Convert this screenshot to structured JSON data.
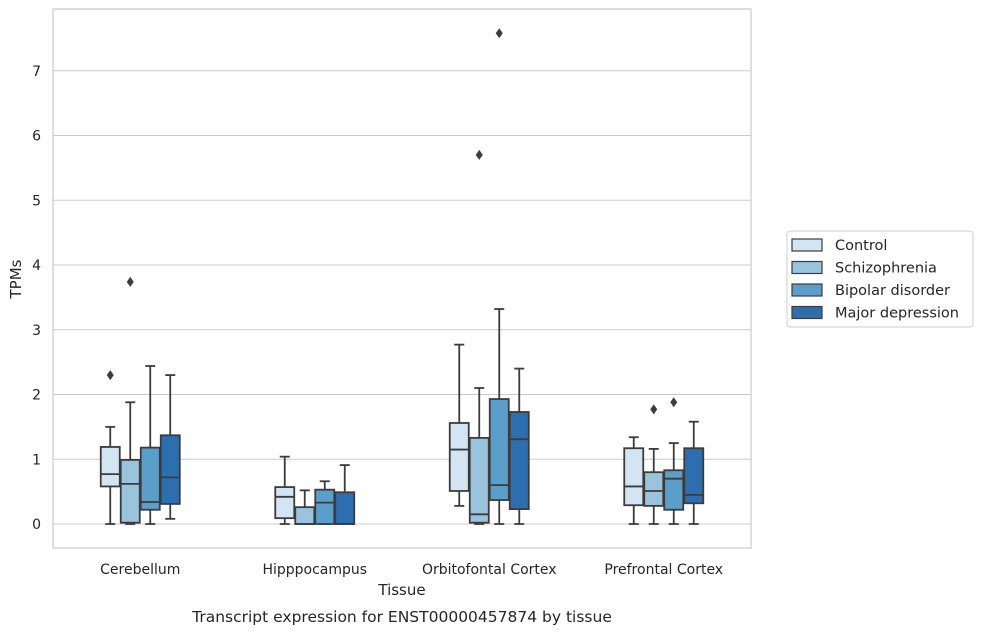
{
  "chart_data": {
    "type": "box",
    "xlabel": "Tissue",
    "ylabel": "TPMs",
    "caption": "Transcript expression for ENST00000457874 by tissue",
    "categories": [
      "Cerebellum",
      "Hipppocampus",
      "Orbitofontal Cortex",
      "Prefrontal Cortex"
    ],
    "ylim": [
      -0.37,
      7.95
    ],
    "yticks": [
      0,
      1,
      2,
      3,
      4,
      5,
      6,
      7
    ],
    "grid": "horizontal",
    "legend_position": "right",
    "series": [
      {
        "name": "Control",
        "color": "#d3e4f3",
        "boxes": [
          {
            "whislo": 0.0,
            "q1": 0.58,
            "med": 0.77,
            "q3": 1.19,
            "whishi": 1.5,
            "fliers": [
              2.3
            ]
          },
          {
            "whislo": 0.0,
            "q1": 0.09,
            "med": 0.42,
            "q3": 0.57,
            "whishi": 1.04,
            "fliers": []
          },
          {
            "whislo": 0.28,
            "q1": 0.51,
            "med": 1.15,
            "q3": 1.56,
            "whishi": 2.77,
            "fliers": []
          },
          {
            "whislo": 0.0,
            "q1": 0.29,
            "med": 0.58,
            "q3": 1.17,
            "whishi": 1.34,
            "fliers": []
          }
        ]
      },
      {
        "name": "Schizophrenia",
        "color": "#9ac3de",
        "boxes": [
          {
            "whislo": 0.0,
            "q1": 0.02,
            "med": 0.62,
            "q3": 0.99,
            "whishi": 1.88,
            "fliers": [
              3.74
            ]
          },
          {
            "whislo": 0.0,
            "q1": 0.0,
            "med": 0.0,
            "q3": 0.26,
            "whishi": 0.52,
            "fliers": []
          },
          {
            "whislo": 0.0,
            "q1": 0.02,
            "med": 0.15,
            "q3": 1.33,
            "whishi": 2.1,
            "fliers": [
              5.7
            ]
          },
          {
            "whislo": 0.0,
            "q1": 0.28,
            "med": 0.51,
            "q3": 0.8,
            "whishi": 1.16,
            "fliers": [
              1.77
            ]
          }
        ]
      },
      {
        "name": "Bipolar disorder",
        "color": "#5a9ec9",
        "boxes": [
          {
            "whislo": 0.0,
            "q1": 0.22,
            "med": 0.34,
            "q3": 1.18,
            "whishi": 2.44,
            "fliers": []
          },
          {
            "whislo": 0.0,
            "q1": 0.0,
            "med": 0.33,
            "q3": 0.53,
            "whishi": 0.66,
            "fliers": []
          },
          {
            "whislo": 0.0,
            "q1": 0.37,
            "med": 0.6,
            "q3": 1.93,
            "whishi": 3.32,
            "fliers": [
              7.58
            ]
          },
          {
            "whislo": 0.0,
            "q1": 0.22,
            "med": 0.7,
            "q3": 0.83,
            "whishi": 1.25,
            "fliers": [
              1.88
            ]
          }
        ]
      },
      {
        "name": "Major depression",
        "color": "#2c6eae",
        "boxes": [
          {
            "whislo": 0.08,
            "q1": 0.31,
            "med": 0.72,
            "q3": 1.37,
            "whishi": 2.3,
            "fliers": []
          },
          {
            "whislo": 0.0,
            "q1": 0.0,
            "med": 0.0,
            "q3": 0.49,
            "whishi": 0.91,
            "fliers": []
          },
          {
            "whislo": 0.0,
            "q1": 0.23,
            "med": 1.31,
            "q3": 1.73,
            "whishi": 2.4,
            "fliers": []
          },
          {
            "whislo": 0.0,
            "q1": 0.32,
            "med": 0.45,
            "q3": 1.17,
            "whishi": 1.58,
            "fliers": []
          }
        ]
      }
    ]
  }
}
